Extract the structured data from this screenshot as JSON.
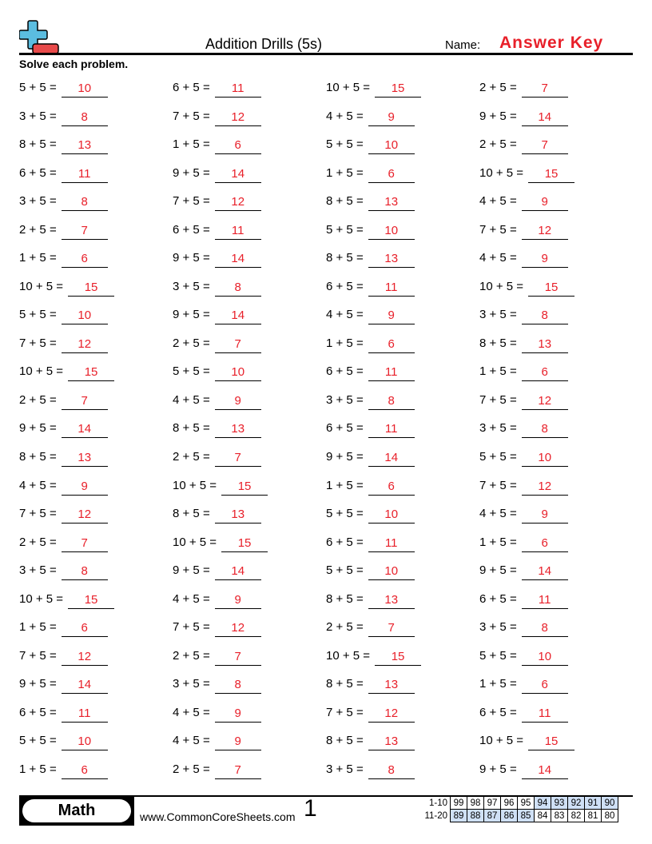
{
  "header": {
    "title": "Addition Drills (5s)",
    "name_label": "Name:",
    "name_value": "Answer Key"
  },
  "instructions": "Solve each problem.",
  "colors": {
    "answer": "#e8202a",
    "logo_plus": "#5bbde0",
    "logo_minus": "#e84a4a",
    "score_highlight": "#cfe0f6"
  },
  "columns": [
    [
      [
        "5 + 5 =",
        "10"
      ],
      [
        "3 + 5 =",
        "8"
      ],
      [
        "8 + 5 =",
        "13"
      ],
      [
        "6 + 5 =",
        "11"
      ],
      [
        "3 + 5 =",
        "8"
      ],
      [
        "2 + 5 =",
        "7"
      ],
      [
        "1 + 5 =",
        "6"
      ],
      [
        "10 + 5 =",
        "15"
      ],
      [
        "5 + 5 =",
        "10"
      ],
      [
        "7 + 5 =",
        "12"
      ],
      [
        "10 + 5 =",
        "15"
      ],
      [
        "2 + 5 =",
        "7"
      ],
      [
        "9 + 5 =",
        "14"
      ],
      [
        "8 + 5 =",
        "13"
      ],
      [
        "4 + 5 =",
        "9"
      ],
      [
        "7 + 5 =",
        "12"
      ],
      [
        "2 + 5 =",
        "7"
      ],
      [
        "3 + 5 =",
        "8"
      ],
      [
        "10 + 5 =",
        "15"
      ],
      [
        "1 + 5 =",
        "6"
      ],
      [
        "7 + 5 =",
        "12"
      ],
      [
        "9 + 5 =",
        "14"
      ],
      [
        "6 + 5 =",
        "11"
      ],
      [
        "5 + 5 =",
        "10"
      ],
      [
        "1 + 5 =",
        "6"
      ]
    ],
    [
      [
        "6 + 5 =",
        "11"
      ],
      [
        "7 + 5 =",
        "12"
      ],
      [
        "1 + 5 =",
        "6"
      ],
      [
        "9 + 5 =",
        "14"
      ],
      [
        "7 + 5 =",
        "12"
      ],
      [
        "6 + 5 =",
        "11"
      ],
      [
        "9 + 5 =",
        "14"
      ],
      [
        "3 + 5 =",
        "8"
      ],
      [
        "9 + 5 =",
        "14"
      ],
      [
        "2 + 5 =",
        "7"
      ],
      [
        "5 + 5 =",
        "10"
      ],
      [
        "4 + 5 =",
        "9"
      ],
      [
        "8 + 5 =",
        "13"
      ],
      [
        "2 + 5 =",
        "7"
      ],
      [
        "10 + 5 =",
        "15"
      ],
      [
        "8 + 5 =",
        "13"
      ],
      [
        "10 + 5 =",
        "15"
      ],
      [
        "9 + 5 =",
        "14"
      ],
      [
        "4 + 5 =",
        "9"
      ],
      [
        "7 + 5 =",
        "12"
      ],
      [
        "2 + 5 =",
        "7"
      ],
      [
        "3 + 5 =",
        "8"
      ],
      [
        "4 + 5 =",
        "9"
      ],
      [
        "4 + 5 =",
        "9"
      ],
      [
        "2 + 5 =",
        "7"
      ]
    ],
    [
      [
        "10 + 5 =",
        "15"
      ],
      [
        "4 + 5 =",
        "9"
      ],
      [
        "5 + 5 =",
        "10"
      ],
      [
        "1 + 5 =",
        "6"
      ],
      [
        "8 + 5 =",
        "13"
      ],
      [
        "5 + 5 =",
        "10"
      ],
      [
        "8 + 5 =",
        "13"
      ],
      [
        "6 + 5 =",
        "11"
      ],
      [
        "4 + 5 =",
        "9"
      ],
      [
        "1 + 5 =",
        "6"
      ],
      [
        "6 + 5 =",
        "11"
      ],
      [
        "3 + 5 =",
        "8"
      ],
      [
        "6 + 5 =",
        "11"
      ],
      [
        "9 + 5 =",
        "14"
      ],
      [
        "1 + 5 =",
        "6"
      ],
      [
        "5 + 5 =",
        "10"
      ],
      [
        "6 + 5 =",
        "11"
      ],
      [
        "5 + 5 =",
        "10"
      ],
      [
        "8 + 5 =",
        "13"
      ],
      [
        "2 + 5 =",
        "7"
      ],
      [
        "10 + 5 =",
        "15"
      ],
      [
        "8 + 5 =",
        "13"
      ],
      [
        "7 + 5 =",
        "12"
      ],
      [
        "8 + 5 =",
        "13"
      ],
      [
        "3 + 5 =",
        "8"
      ]
    ],
    [
      [
        "2 + 5 =",
        "7"
      ],
      [
        "9 + 5 =",
        "14"
      ],
      [
        "2 + 5 =",
        "7"
      ],
      [
        "10 + 5 =",
        "15"
      ],
      [
        "4 + 5 =",
        "9"
      ],
      [
        "7 + 5 =",
        "12"
      ],
      [
        "4 + 5 =",
        "9"
      ],
      [
        "10 + 5 =",
        "15"
      ],
      [
        "3 + 5 =",
        "8"
      ],
      [
        "8 + 5 =",
        "13"
      ],
      [
        "1 + 5 =",
        "6"
      ],
      [
        "7 + 5 =",
        "12"
      ],
      [
        "3 + 5 =",
        "8"
      ],
      [
        "5 + 5 =",
        "10"
      ],
      [
        "7 + 5 =",
        "12"
      ],
      [
        "4 + 5 =",
        "9"
      ],
      [
        "1 + 5 =",
        "6"
      ],
      [
        "9 + 5 =",
        "14"
      ],
      [
        "6 + 5 =",
        "11"
      ],
      [
        "3 + 5 =",
        "8"
      ],
      [
        "5 + 5 =",
        "10"
      ],
      [
        "1 + 5 =",
        "6"
      ],
      [
        "6 + 5 =",
        "11"
      ],
      [
        "10 + 5 =",
        "15"
      ],
      [
        "9 + 5 =",
        "14"
      ]
    ]
  ],
  "footer": {
    "subject": "Math",
    "website": "www.CommonCoreSheets.com",
    "page_number": "1",
    "score_rows": [
      {
        "label": "1-10",
        "scores": [
          "99",
          "98",
          "97",
          "96",
          "95",
          "94",
          "93",
          "92",
          "91",
          "90"
        ],
        "highlighted": [
          5,
          6,
          7,
          8,
          9
        ]
      },
      {
        "label": "11-20",
        "scores": [
          "89",
          "88",
          "87",
          "86",
          "85",
          "84",
          "83",
          "82",
          "81",
          "80"
        ],
        "highlighted": [
          0,
          1,
          2,
          3,
          4
        ]
      }
    ]
  }
}
